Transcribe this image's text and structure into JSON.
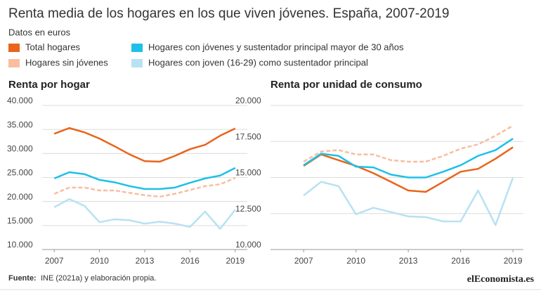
{
  "title": "Renta media de los hogares en los que viven jóvenes. España, 2007-2019",
  "subtitle": "Datos en euros",
  "source_label": "Fuente:",
  "source": "INE (2021a) y elaboración propia.",
  "logo": "elEconomista.es",
  "chart_data": [
    {
      "type": "line",
      "title": "Renta por hogar",
      "x": [
        2007,
        2008,
        2009,
        2010,
        2011,
        2012,
        2013,
        2014,
        2015,
        2016,
        2017,
        2018,
        2019
      ],
      "xlim": [
        2006.2,
        2019.8
      ],
      "xticks": [
        2007,
        2010,
        2013,
        2016,
        2019
      ],
      "ylim": [
        10000,
        40000
      ],
      "yticks": [
        {
          "value": 10000,
          "label": "10.000"
        },
        {
          "value": 15000,
          "label": "15.000"
        },
        {
          "value": 20000,
          "label": "20.000"
        },
        {
          "value": 25000,
          "label": "25.000"
        },
        {
          "value": 30000,
          "label": "30.000"
        },
        {
          "value": 35000,
          "label": "35.000"
        },
        {
          "value": 40000,
          "label": "40.000"
        }
      ],
      "grid": true,
      "series": [
        {
          "name": "Total hogares",
          "color": "#e8651a",
          "dashed": false,
          "values": [
            34100,
            35300,
            34400,
            33100,
            31500,
            29800,
            28400,
            28300,
            29500,
            30900,
            31800,
            33700,
            35200
          ]
        },
        {
          "name": "Hogares sin jóvenes",
          "color": "#f8bea0",
          "dashed": true,
          "values": [
            21600,
            22900,
            22900,
            22300,
            22300,
            21800,
            21300,
            21000,
            21600,
            22400,
            23200,
            23600,
            24900
          ]
        },
        {
          "name": "Hogares con jóvenes y sustentador principal mayor de 30 años",
          "color": "#1ec0e8",
          "dashed": false,
          "values": [
            24800,
            26100,
            25700,
            24500,
            24000,
            23200,
            22600,
            22600,
            22900,
            23900,
            24800,
            25400,
            27000
          ]
        },
        {
          "name": "Hogares con joven (16-29) como sustentador principal",
          "color": "#b7e2f2",
          "dashed": false,
          "values": [
            18800,
            20500,
            19100,
            15700,
            16300,
            16100,
            15400,
            15800,
            15400,
            14700,
            17900,
            14300,
            18300
          ]
        }
      ]
    },
    {
      "type": "line",
      "title": "Renta por unidad de consumo",
      "x": [
        2007,
        2008,
        2009,
        2010,
        2011,
        2012,
        2013,
        2014,
        2015,
        2016,
        2017,
        2018,
        2019
      ],
      "xlim": [
        2005.1,
        2019.6
      ],
      "xticks": [
        2007,
        2010,
        2013,
        2016,
        2019
      ],
      "ylim": [
        10000,
        20000
      ],
      "yticks": [
        {
          "value": 10000,
          "label": "10.000"
        },
        {
          "value": 12500,
          "label": "12.500"
        },
        {
          "value": 15000,
          "label": "15.000"
        },
        {
          "value": 17500,
          "label": "17.500"
        },
        {
          "value": 20000,
          "label": "20.000"
        }
      ],
      "grid": true,
      "series": [
        {
          "color": "#e8651a",
          "dashed": false,
          "values": [
            15800,
            16600,
            16200,
            15800,
            15300,
            14700,
            14100,
            14000,
            14700,
            15400,
            15600,
            16300,
            17100
          ]
        },
        {
          "color": "#f8bea0",
          "dashed": true,
          "values": [
            16100,
            16800,
            16900,
            16600,
            16600,
            16200,
            16100,
            16100,
            16500,
            17000,
            17300,
            17900,
            18600
          ]
        },
        {
          "color": "#1ec0e8",
          "dashed": false,
          "values": [
            15850,
            16650,
            16500,
            15750,
            15700,
            15200,
            15000,
            15000,
            15400,
            15850,
            16500,
            16900,
            17700
          ]
        },
        {
          "color": "#b7e2f2",
          "dashed": false,
          "values": [
            13750,
            14700,
            14400,
            12450,
            12900,
            12600,
            12300,
            12250,
            11950,
            11950,
            14100,
            11700,
            15000
          ]
        }
      ]
    }
  ]
}
